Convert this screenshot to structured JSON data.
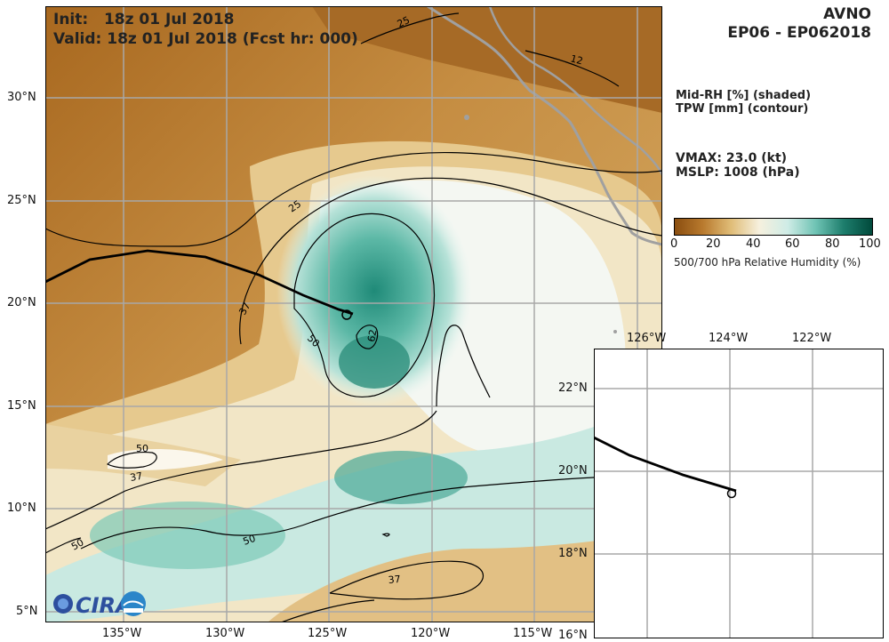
{
  "header": {
    "model": "AVNO",
    "storm_id": "EP06 - EP062018",
    "init_label": "Init:",
    "init_time": "18z 01 Jul 2018",
    "valid_line": "Valid: 18z 01 Jul 2018 (Fcst hr: 000)"
  },
  "legend_text": {
    "shaded": "Mid-RH [%] (shaded)",
    "contour": "TPW [mm] (contour)",
    "vmax": "VMAX:  23.0 (kt)",
    "mslp": "MSLP: 1008 (hPa)"
  },
  "colorbar": {
    "ticks": [
      "0",
      "20",
      "40",
      "60",
      "80",
      "100"
    ],
    "label": "500/700 hPa Relative Humidity (%)",
    "colors": [
      "#8a4e10",
      "#b97a2e",
      "#e0bd78",
      "#f6f0de",
      "#cfece6",
      "#6fc3b4",
      "#1d7d6c",
      "#014a3c"
    ]
  },
  "main_map": {
    "lat_labels": [
      "30°N",
      "25°N",
      "20°N",
      "15°N",
      "10°N",
      "5°N"
    ],
    "lon_labels": [
      "135°W",
      "130°W",
      "125°W",
      "120°W",
      "115°W"
    ],
    "contour_labels": [
      "25",
      "12",
      "25",
      "37",
      "50",
      "62",
      "50",
      "37",
      "50",
      "50",
      "37"
    ]
  },
  "inset_map": {
    "lon_labels": [
      "126°W",
      "124°W",
      "122°W"
    ],
    "lat_labels": [
      "22°N",
      "20°N",
      "18°N",
      "16°N"
    ]
  },
  "logo": {
    "text": "CIRA"
  }
}
